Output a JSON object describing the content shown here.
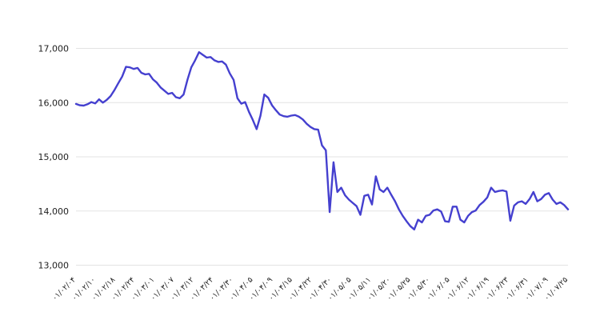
{
  "chart_data": {
    "type": "line",
    "title": "",
    "xlabel": "",
    "ylabel": "",
    "legend": "none",
    "grid": "horizontal",
    "background_color": "#ffffff",
    "line_color": "#4540cf",
    "grid_color": "#e3e3e3",
    "tick_text_color": "#1f1f1f",
    "ylim": [
      13000,
      17000
    ],
    "y_ticks": [
      13000,
      14000,
      15000,
      16000,
      17000
    ],
    "y_tick_labels": [
      "13,000",
      "14,000",
      "15,000",
      "16,000",
      "17,000"
    ],
    "x_tick_labels": [
      "۰۱/۰۲/۰۴",
      "۰۱/۰۲/۱۰",
      "۰۱/۰۲/۱۸",
      "۰۱/۰۲/۲۴",
      "۰۱/۰۳/۰۱",
      "۰۱/۰۳/۰۷",
      "۰۱/۰۳/۱۲",
      "۰۱/۰۳/۲۴",
      "۰۱/۰۳/۳۰",
      "۰۱/۰۴/۰۵",
      "۰۱/۰۴/۰۹",
      "۰۱/۰۴/۱۵",
      "۰۱/۰۴/۲۲",
      "۰۱/۰۴/۳۰",
      "۰۱/۰۵/۰۵",
      "۰۱/۰۵/۱۱",
      "۰۱/۰۵/۲۰",
      "۰۱/۰۵/۲۵",
      "۰۱/۰۵/۳۰",
      "۰۱/۰۶/۰۵",
      "۰۱/۰۶/۱۲",
      "۰۱/۰۶/۱۹",
      "۰۱/۰۶/۲۳",
      "۰۱/۰۶/۳۱",
      "۰۱/۰۷/۰۹",
      "۰۱/۰۷/۲۵"
    ],
    "values": [
      15975,
      15950,
      15945,
      15970,
      16010,
      15985,
      16060,
      16000,
      16050,
      16120,
      16230,
      16360,
      16480,
      16660,
      16650,
      16620,
      16640,
      16550,
      16520,
      16530,
      16430,
      16370,
      16280,
      16220,
      16160,
      16180,
      16100,
      16080,
      16150,
      16420,
      16650,
      16780,
      16930,
      16880,
      16830,
      16840,
      16780,
      16750,
      16760,
      16700,
      16540,
      16420,
      16080,
      15980,
      16010,
      15830,
      15680,
      15510,
      15760,
      16150,
      16090,
      15950,
      15860,
      15780,
      15750,
      15740,
      15760,
      15770,
      15740,
      15690,
      15610,
      15550,
      15510,
      15500,
      15210,
      15120,
      13980,
      14900,
      14350,
      14430,
      14290,
      14210,
      14150,
      14090,
      13930,
      14280,
      14300,
      14120,
      14640,
      14400,
      14350,
      14430,
      14300,
      14180,
      14030,
      13910,
      13810,
      13720,
      13660,
      13840,
      13790,
      13910,
      13930,
      14010,
      14030,
      13990,
      13810,
      13800,
      14080,
      14080,
      13840,
      13790,
      13910,
      13980,
      14010,
      14110,
      14170,
      14250,
      14430,
      14350,
      14370,
      14380,
      14360,
      13820,
      14100,
      14160,
      14180,
      14130,
      14220,
      14350,
      14180,
      14220,
      14300,
      14330,
      14210,
      14130,
      14160,
      14110,
      14030
    ]
  }
}
